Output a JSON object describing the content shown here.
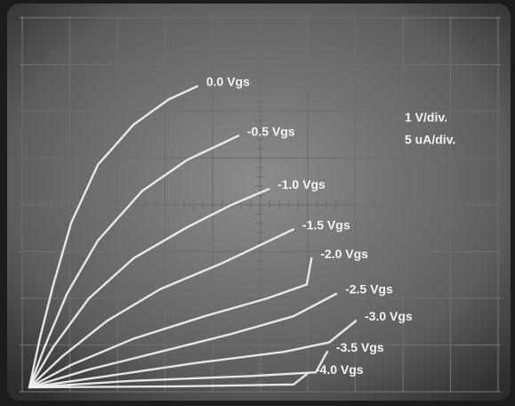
{
  "chart_data": {
    "type": "line",
    "annotations": [
      "1 V/div.",
      "5 uA/div."
    ],
    "xlim": [
      0,
      10
    ],
    "ylim": [
      0,
      40
    ],
    "series": [
      {
        "name": "0.0 Vgs",
        "color": "#f2f2f2",
        "x": [
          0,
          0.22,
          0.5,
          0.88,
          1.44,
          2.19,
          2.93,
          3.53
        ],
        "values": [
          0,
          5.2,
          10.9,
          17.6,
          23.8,
          28.1,
          30.8,
          32.2
        ]
      },
      {
        "name": "-0.5 Vgs",
        "color": "#f2f2f2",
        "x": [
          0,
          0.32,
          0.79,
          1.44,
          2.37,
          3.31,
          4.39
        ],
        "values": [
          0,
          4.3,
          10,
          15.7,
          21,
          24.3,
          26.9
        ]
      },
      {
        "name": "-1.0 Vgs",
        "color": "#f2f2f2",
        "x": [
          0,
          0.5,
          1.25,
          2.19,
          3.31,
          4.24,
          5.03
        ],
        "values": [
          0,
          4.3,
          9.5,
          13.8,
          17.1,
          19.5,
          21.2
        ]
      },
      {
        "name": "-1.5 Vgs",
        "color": "#f2f2f2",
        "x": [
          0,
          0.69,
          1.63,
          2.75,
          4.06,
          5.55
        ],
        "values": [
          0,
          3.3,
          7.1,
          10.5,
          13.3,
          16.9
        ]
      },
      {
        "name": "-2.0 Vgs",
        "color": "#f2f2f2",
        "x": [
          0,
          0.88,
          2.19,
          3.68,
          4.99,
          5.83,
          5.93
        ],
        "values": [
          0,
          2.4,
          5.2,
          7.6,
          9.5,
          11,
          13.8
        ]
      },
      {
        "name": "-2.5 Vgs",
        "color": "#f2f2f2",
        "x": [
          0,
          1.25,
          2.75,
          4.24,
          5.55,
          6.45
        ],
        "values": [
          0,
          1.9,
          3.8,
          5.7,
          7.6,
          10
        ]
      },
      {
        "name": "-3.0 Vgs",
        "color": "#f2f2f2",
        "x": [
          0,
          1.63,
          3.5,
          5.36,
          6.3,
          6.86
        ],
        "values": [
          0,
          1.2,
          2.6,
          3.8,
          4.8,
          7.1
        ]
      },
      {
        "name": "-3.5 Vgs",
        "color": "#f2f2f2",
        "x": [
          0,
          2.19,
          4.62,
          6.02,
          6.26
        ],
        "values": [
          0,
          0.7,
          1.2,
          1.6,
          3.8
        ]
      },
      {
        "name": "-4.0 Vgs",
        "color": "#f2f2f2",
        "x": [
          0,
          3.12,
          5.55,
          5.83
        ],
        "values": [
          0,
          0.1,
          0.3,
          1.4
        ]
      }
    ]
  }
}
